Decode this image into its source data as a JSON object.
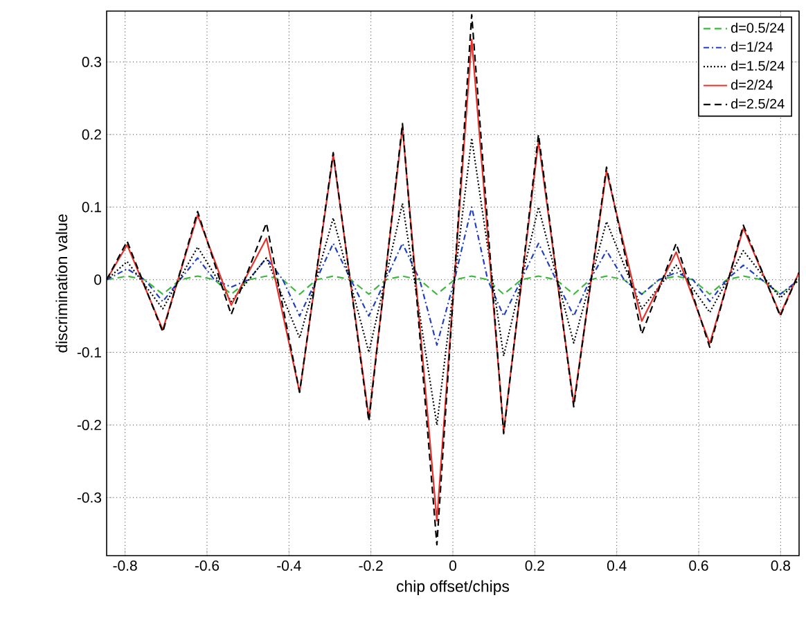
{
  "chart_data": {
    "type": "line",
    "xlabel": "chip offset/chips",
    "ylabel": "discrimination value",
    "xlim": [
      -0.845,
      0.845
    ],
    "ylim": [
      -0.38,
      0.37
    ],
    "xticks": [
      -0.8,
      -0.6,
      -0.4,
      -0.2,
      0,
      0.2,
      0.4,
      0.6,
      0.8
    ],
    "yticks": [
      -0.3,
      -0.2,
      -0.1,
      0,
      0.1,
      0.2,
      0.3
    ],
    "grid": true,
    "legend": "top right",
    "marker": "none",
    "series": [
      {
        "name": "d=0.5/24",
        "color": "#3cb83c",
        "line_style": "dashed",
        "x": [
          -0.845,
          -0.795,
          -0.752,
          -0.708,
          -0.666,
          -0.623,
          -0.582,
          -0.541,
          -0.498,
          -0.455,
          -0.415,
          -0.374,
          -0.333,
          -0.292,
          -0.249,
          -0.205,
          -0.164,
          -0.123,
          -0.081,
          -0.039,
          0.004,
          0.046,
          0.085,
          0.124,
          0.167,
          0.209,
          0.252,
          0.295,
          0.335,
          0.375,
          0.418,
          0.461,
          0.503,
          0.545,
          0.586,
          0.627,
          0.668,
          0.709,
          0.754,
          0.799,
          0.845
        ],
        "values": [
          0,
          0.005,
          0,
          -0.02,
          0,
          0.005,
          0,
          -0.02,
          0,
          0.005,
          0,
          -0.02,
          0,
          0.005,
          0,
          -0.02,
          0,
          0.005,
          0,
          -0.02,
          0,
          0.005,
          0,
          -0.02,
          0,
          0.005,
          0,
          -0.02,
          0,
          0.005,
          0,
          -0.02,
          0,
          0.005,
          0,
          -0.02,
          0,
          0.005,
          0,
          -0.02,
          0
        ]
      },
      {
        "name": "d=1/24",
        "color": "#2040c0",
        "line_style": "dashdot",
        "x": [
          -0.845,
          -0.795,
          -0.752,
          -0.708,
          -0.666,
          -0.623,
          -0.582,
          -0.541,
          -0.498,
          -0.455,
          -0.415,
          -0.374,
          -0.333,
          -0.292,
          -0.249,
          -0.205,
          -0.164,
          -0.123,
          -0.081,
          -0.039,
          0.004,
          0.046,
          0.085,
          0.124,
          0.167,
          0.209,
          0.252,
          0.295,
          0.335,
          0.375,
          0.418,
          0.461,
          0.503,
          0.545,
          0.586,
          0.627,
          0.668,
          0.709,
          0.754,
          0.799,
          0.845
        ],
        "values": [
          0,
          0.015,
          0,
          -0.03,
          0,
          0.03,
          0,
          -0.01,
          0,
          0.03,
          0,
          -0.05,
          0,
          0.05,
          0,
          -0.05,
          0,
          0.05,
          0,
          -0.09,
          0,
          0.1,
          0,
          -0.05,
          0,
          0.05,
          0,
          -0.05,
          0,
          0.04,
          0,
          -0.02,
          0,
          0.01,
          0,
          -0.03,
          0,
          0.02,
          0,
          -0.02,
          0
        ]
      },
      {
        "name": "d=1.5/24",
        "color": "#000000",
        "line_style": "dotted",
        "x": [
          -0.845,
          -0.795,
          -0.708,
          -0.623,
          -0.541,
          -0.455,
          -0.374,
          -0.292,
          -0.205,
          -0.123,
          -0.039,
          0.046,
          0.124,
          0.209,
          0.295,
          0.375,
          0.461,
          0.545,
          0.627,
          0.709,
          0.799,
          0.845
        ],
        "values": [
          0,
          0.025,
          -0.04,
          0.045,
          -0.03,
          0.03,
          -0.08,
          0.085,
          -0.1,
          0.105,
          -0.2,
          0.195,
          -0.105,
          0.1,
          -0.087,
          0.08,
          -0.04,
          0.02,
          -0.045,
          0.04,
          -0.025,
          0
        ]
      },
      {
        "name": "d=2/24",
        "color": "#e8312a",
        "line_style": "solid",
        "x": [
          -0.845,
          -0.795,
          -0.708,
          -0.623,
          -0.541,
          -0.455,
          -0.374,
          -0.292,
          -0.205,
          -0.123,
          -0.039,
          0.046,
          0.124,
          0.209,
          0.295,
          0.375,
          0.461,
          0.545,
          0.627,
          0.709,
          0.799,
          0.845
        ],
        "values": [
          0,
          0.048,
          -0.069,
          0.089,
          -0.035,
          0.057,
          -0.155,
          0.172,
          -0.19,
          0.21,
          -0.332,
          0.331,
          -0.209,
          0.191,
          -0.171,
          0.15,
          -0.057,
          0.038,
          -0.088,
          0.071,
          -0.048,
          0.01
        ]
      },
      {
        "name": "d=2.5/24",
        "color": "#000000",
        "line_style": "dashed",
        "x": [
          -0.845,
          -0.795,
          -0.708,
          -0.623,
          -0.541,
          -0.455,
          -0.374,
          -0.292,
          -0.205,
          -0.123,
          -0.039,
          0.046,
          0.124,
          0.209,
          0.295,
          0.375,
          0.461,
          0.545,
          0.627,
          0.709,
          0.799,
          0.845
        ],
        "values": [
          0,
          0.053,
          -0.072,
          0.094,
          -0.048,
          0.078,
          -0.155,
          0.175,
          -0.195,
          0.215,
          -0.365,
          0.365,
          -0.212,
          0.2,
          -0.175,
          0.155,
          -0.075,
          0.05,
          -0.093,
          0.075,
          -0.05,
          0.01
        ]
      }
    ]
  }
}
